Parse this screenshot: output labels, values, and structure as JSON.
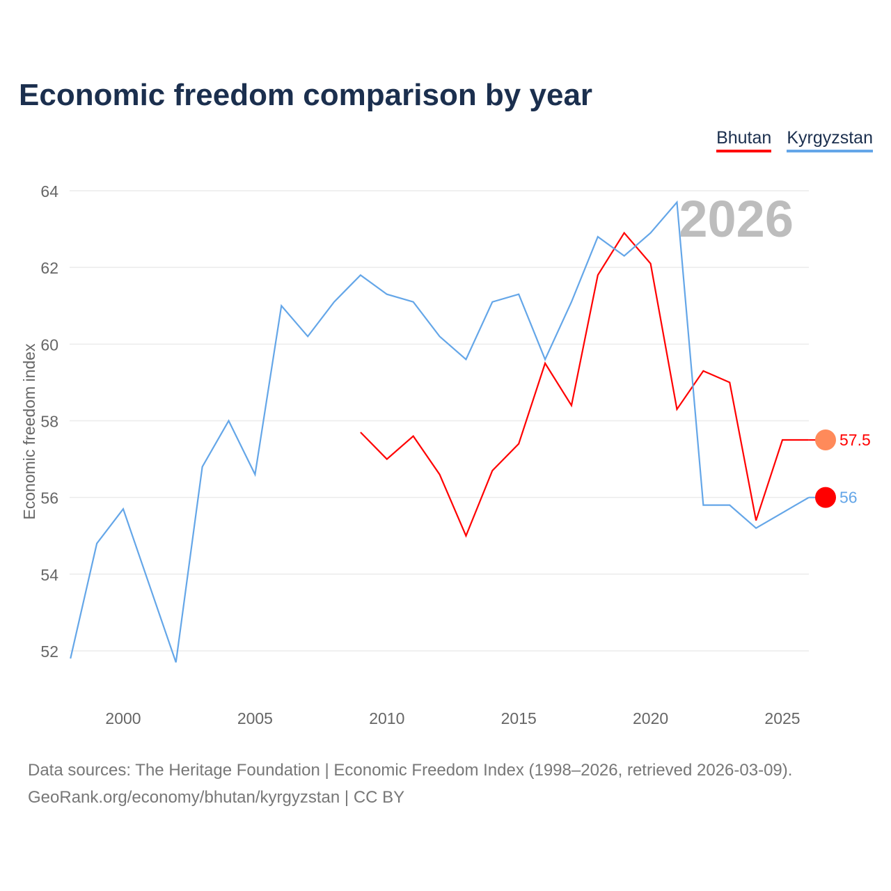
{
  "title": "Economic freedom comparison by year",
  "footer": {
    "line1": "Data sources: The Heritage Foundation | Economic Freedom Index (1998–2026, retrieved 2026-03-09).",
    "line2": "GeoRank.org/economy/bhutan/kyrgyzstan | CC BY"
  },
  "chart_data": {
    "type": "line",
    "title": "Economic freedom comparison by year",
    "ylabel": "Economic freedom index",
    "xlabel": "",
    "xlim": [
      1998,
      2026
    ],
    "ylim": [
      50.8,
      64
    ],
    "yticks": [
      52,
      54,
      56,
      58,
      60,
      62,
      64
    ],
    "xticks": [
      2000,
      2005,
      2010,
      2015,
      2020,
      2025
    ],
    "year_label": "2026",
    "grid": true,
    "legend": "top-right",
    "series": [
      {
        "name": "Bhutan",
        "color": "#ff0000",
        "end_label": "57.5",
        "x": [
          2009,
          2010,
          2011,
          2012,
          2013,
          2014,
          2015,
          2016,
          2017,
          2018,
          2019,
          2020,
          2021,
          2022,
          2023,
          2024,
          2025,
          2026
        ],
        "values": [
          57.7,
          57.0,
          57.6,
          56.6,
          55.0,
          56.7,
          57.4,
          59.5,
          58.4,
          61.8,
          62.9,
          62.1,
          58.3,
          59.3,
          59.0,
          55.4,
          57.5,
          57.5
        ]
      },
      {
        "name": "Kyrgyzstan",
        "color": "#64a6e8",
        "end_label": "56",
        "x": [
          1998,
          1999,
          2000,
          2001,
          2002,
          2003,
          2004,
          2005,
          2006,
          2007,
          2008,
          2009,
          2010,
          2011,
          2012,
          2013,
          2014,
          2015,
          2016,
          2017,
          2018,
          2019,
          2020,
          2021,
          2022,
          2023,
          2024,
          2025,
          2026
        ],
        "values": [
          51.8,
          54.8,
          55.7,
          53.7,
          51.7,
          56.8,
          58.0,
          56.6,
          61.0,
          60.2,
          61.1,
          61.8,
          61.3,
          61.1,
          60.2,
          59.6,
          61.1,
          61.3,
          59.6,
          61.1,
          62.8,
          62.3,
          62.9,
          63.7,
          55.8,
          55.8,
          55.2,
          55.6,
          56.0
        ]
      }
    ]
  }
}
